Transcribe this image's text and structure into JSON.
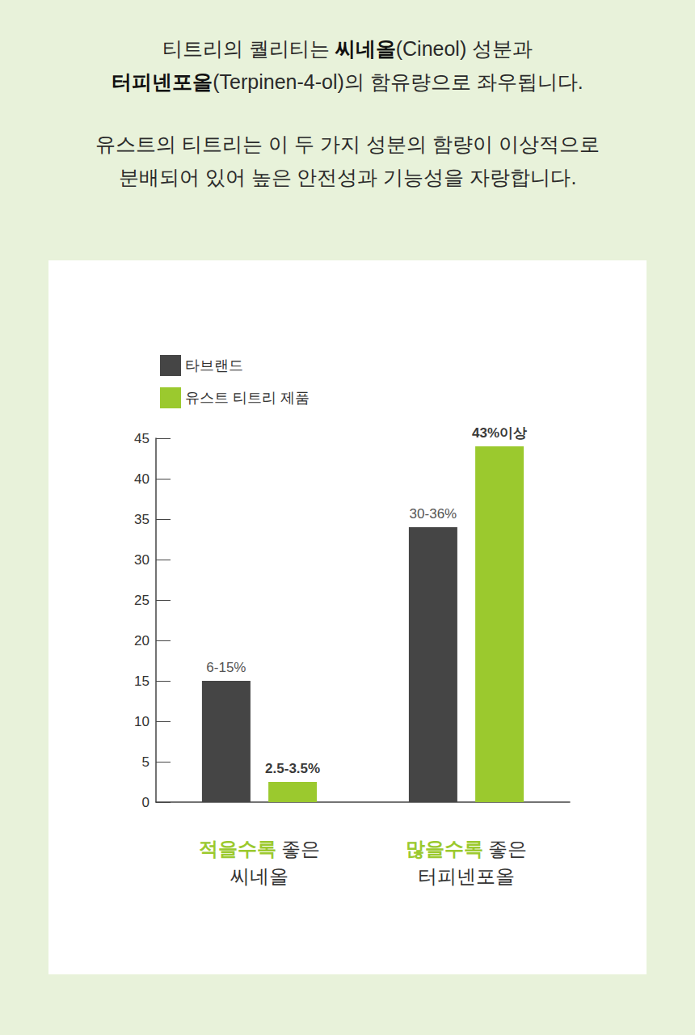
{
  "header": {
    "paragraphs": [
      {
        "lines": [
          [
            {
              "text": "티트리의 퀄리티는 "
            },
            {
              "text": "씨네올",
              "bold": true
            },
            {
              "text": "(Cineol) 성분과"
            }
          ],
          [
            {
              "text": "터피넨포올",
              "bold": true
            },
            {
              "text": "(Terpinen-4-ol)의 함유량으로 좌우됩니다."
            }
          ]
        ]
      },
      {
        "lines": [
          [
            {
              "text": "유스트의 티트리는 이 두 가지 성분의 함량이 이상적으로"
            }
          ],
          [
            {
              "text": "분배되어 있어 높은 안전성과 기능성을 자랑합니다."
            }
          ]
        ]
      }
    ]
  },
  "chart_data": {
    "type": "bar",
    "categories": [
      "적을수록 좋은 씨네올",
      "많을수록 좋은 터피넨포올"
    ],
    "series": [
      {
        "name": "타브랜드",
        "color": "#454545",
        "values": [
          15,
          34
        ],
        "value_labels": [
          "6-15%",
          "30-36%"
        ]
      },
      {
        "name": "유스트 티트리 제품",
        "color": "#9bc92e",
        "values": [
          2.5,
          44
        ],
        "value_labels": [
          "2.5-3.5%",
          "43%이상"
        ]
      }
    ],
    "ylim": [
      0,
      45
    ],
    "yticks": [
      0,
      5,
      10,
      15,
      20,
      25,
      30,
      35,
      40,
      45
    ],
    "legend": "top-left",
    "data_labels": true,
    "grid": false
  }
}
